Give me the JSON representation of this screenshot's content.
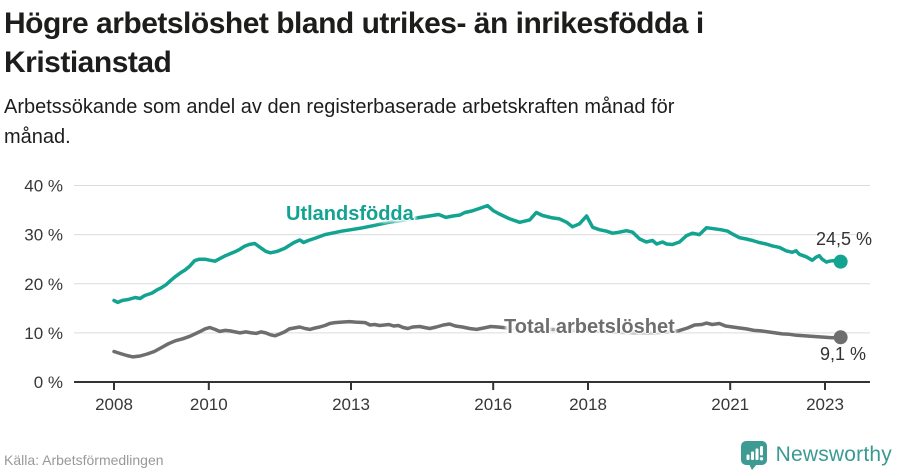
{
  "header": {
    "title_lines": [
      "Högre arbetslöshet bland utrikes- än inrikesfödda i",
      "Kristianstad"
    ],
    "subtitle_lines": [
      "Arbetssökande som andel av den registerbaserade arbetskraften månad för",
      "månad."
    ]
  },
  "footer": {
    "source": "Källa: Arbetsförmedlingen",
    "logo_text": "Newsworthy",
    "logo_icon": "newsworthy-speech-bubble-bar-chart-icon"
  },
  "colors": {
    "title": "#1d1d1b",
    "series_utland": "#12a391",
    "series_total": "#6e6e6e",
    "grid": "#dcdcdc",
    "axis_line": "#333333",
    "axis_text": "#383838",
    "annotation": "#333333",
    "source_text": "#999999",
    "logo_teal": "#3d9b94"
  },
  "chart_data": {
    "type": "line",
    "title": "Högre arbetslöshet bland utrikes- än inrikesfödda i Kristianstad",
    "subtitle": "Arbetssökande som andel av den registerbaserade arbetskraften månad för månad.",
    "xlabel": "",
    "ylabel": "",
    "xlim": [
      2007.9,
      2023.6
    ],
    "ylim": [
      0,
      40
    ],
    "grid": "horizontal",
    "legend_position": "inline-labels",
    "x_ticks": [
      {
        "year": 2008,
        "label": "2008"
      },
      {
        "year": 2010,
        "label": "2010"
      },
      {
        "year": 2013,
        "label": "2013"
      },
      {
        "year": 2016,
        "label": "2016"
      },
      {
        "year": 2018,
        "label": "2018"
      },
      {
        "year": 2021,
        "label": "2021"
      },
      {
        "year": 2023,
        "label": "2023"
      }
    ],
    "y_ticks": [
      {
        "value": 0,
        "label": "0 %"
      },
      {
        "value": 10,
        "label": "10 %"
      },
      {
        "value": 20,
        "label": "20 %"
      },
      {
        "value": 30,
        "label": "30 %"
      },
      {
        "value": 40,
        "label": "40 %"
      }
    ],
    "series": [
      {
        "name": "Utlandsfödda",
        "color": "#12a391",
        "end_label": "24,5 %",
        "end_value": 24.5,
        "points": [
          [
            2008.0,
            16.6
          ],
          [
            2008.08,
            16.2
          ],
          [
            2008.17,
            16.6
          ],
          [
            2008.3,
            16.8
          ],
          [
            2008.45,
            17.2
          ],
          [
            2008.55,
            17.0
          ],
          [
            2008.65,
            17.6
          ],
          [
            2008.8,
            18.1
          ],
          [
            2008.9,
            18.7
          ],
          [
            2009.0,
            19.2
          ],
          [
            2009.1,
            19.8
          ],
          [
            2009.2,
            20.7
          ],
          [
            2009.3,
            21.5
          ],
          [
            2009.4,
            22.2
          ],
          [
            2009.5,
            22.8
          ],
          [
            2009.6,
            23.6
          ],
          [
            2009.7,
            24.7
          ],
          [
            2009.8,
            25.0
          ],
          [
            2009.92,
            25.0
          ],
          [
            2010.02,
            24.8
          ],
          [
            2010.13,
            24.6
          ],
          [
            2010.25,
            25.2
          ],
          [
            2010.35,
            25.7
          ],
          [
            2010.45,
            26.1
          ],
          [
            2010.55,
            26.5
          ],
          [
            2010.65,
            27.0
          ],
          [
            2010.75,
            27.6
          ],
          [
            2010.85,
            28.0
          ],
          [
            2010.97,
            28.2
          ],
          [
            2011.1,
            27.3
          ],
          [
            2011.2,
            26.6
          ],
          [
            2011.3,
            26.3
          ],
          [
            2011.45,
            26.6
          ],
          [
            2011.6,
            27.2
          ],
          [
            2011.7,
            27.8
          ],
          [
            2011.8,
            28.4
          ],
          [
            2011.92,
            28.9
          ],
          [
            2012.0,
            28.4
          ],
          [
            2012.1,
            28.8
          ],
          [
            2012.25,
            29.3
          ],
          [
            2012.45,
            30.0
          ],
          [
            2012.65,
            30.4
          ],
          [
            2012.8,
            30.7
          ],
          [
            2013.0,
            31.0
          ],
          [
            2013.2,
            31.3
          ],
          [
            2013.4,
            31.7
          ],
          [
            2013.6,
            32.1
          ],
          [
            2013.8,
            32.5
          ],
          [
            2014.0,
            32.8
          ],
          [
            2014.2,
            33.1
          ],
          [
            2014.4,
            33.4
          ],
          [
            2014.6,
            33.7
          ],
          [
            2014.85,
            34.1
          ],
          [
            2015.0,
            33.5
          ],
          [
            2015.15,
            33.8
          ],
          [
            2015.3,
            34.0
          ],
          [
            2015.4,
            34.5
          ],
          [
            2015.55,
            34.8
          ],
          [
            2015.7,
            35.3
          ],
          [
            2015.88,
            35.9
          ],
          [
            2016.0,
            34.9
          ],
          [
            2016.13,
            34.2
          ],
          [
            2016.35,
            33.2
          ],
          [
            2016.56,
            32.5
          ],
          [
            2016.77,
            33.0
          ],
          [
            2016.91,
            34.5
          ],
          [
            2017.04,
            33.9
          ],
          [
            2017.25,
            33.4
          ],
          [
            2017.4,
            33.2
          ],
          [
            2017.55,
            32.5
          ],
          [
            2017.67,
            31.6
          ],
          [
            2017.82,
            32.2
          ],
          [
            2017.97,
            33.8
          ],
          [
            2018.1,
            31.5
          ],
          [
            2018.24,
            31.0
          ],
          [
            2018.39,
            30.7
          ],
          [
            2018.52,
            30.3
          ],
          [
            2018.66,
            30.5
          ],
          [
            2018.81,
            30.8
          ],
          [
            2018.94,
            30.5
          ],
          [
            2019.09,
            29.1
          ],
          [
            2019.23,
            28.5
          ],
          [
            2019.36,
            28.8
          ],
          [
            2019.45,
            28.1
          ],
          [
            2019.57,
            28.5
          ],
          [
            2019.66,
            28.1
          ],
          [
            2019.78,
            28.0
          ],
          [
            2019.93,
            28.5
          ],
          [
            2020.08,
            29.8
          ],
          [
            2020.2,
            30.3
          ],
          [
            2020.35,
            30.0
          ],
          [
            2020.5,
            31.4
          ],
          [
            2020.65,
            31.2
          ],
          [
            2020.8,
            31.0
          ],
          [
            2020.95,
            30.7
          ],
          [
            2021.05,
            30.1
          ],
          [
            2021.19,
            29.4
          ],
          [
            2021.34,
            29.1
          ],
          [
            2021.47,
            28.8
          ],
          [
            2021.61,
            28.4
          ],
          [
            2021.76,
            28.1
          ],
          [
            2021.89,
            27.7
          ],
          [
            2022.04,
            27.4
          ],
          [
            2022.18,
            26.7
          ],
          [
            2022.31,
            26.4
          ],
          [
            2022.39,
            26.7
          ],
          [
            2022.46,
            26.0
          ],
          [
            2022.6,
            25.5
          ],
          [
            2022.73,
            24.8
          ],
          [
            2022.81,
            25.4
          ],
          [
            2022.88,
            25.7
          ],
          [
            2022.94,
            25.0
          ],
          [
            2023.03,
            24.4
          ],
          [
            2023.09,
            24.6
          ],
          [
            2023.17,
            24.7
          ],
          [
            2023.33,
            24.5
          ]
        ]
      },
      {
        "name": "Total arbetslöshet",
        "color": "#6e6e6e",
        "end_label": "9,1 %",
        "end_value": 9.1,
        "points": [
          [
            2008.0,
            6.2
          ],
          [
            2008.13,
            5.8
          ],
          [
            2008.27,
            5.4
          ],
          [
            2008.4,
            5.1
          ],
          [
            2008.55,
            5.3
          ],
          [
            2008.7,
            5.7
          ],
          [
            2008.85,
            6.2
          ],
          [
            2009.0,
            7.0
          ],
          [
            2009.15,
            7.8
          ],
          [
            2009.3,
            8.4
          ],
          [
            2009.45,
            8.8
          ],
          [
            2009.6,
            9.3
          ],
          [
            2009.8,
            10.2
          ],
          [
            2009.92,
            10.8
          ],
          [
            2010.02,
            11.1
          ],
          [
            2010.13,
            10.7
          ],
          [
            2010.23,
            10.3
          ],
          [
            2010.35,
            10.5
          ],
          [
            2010.45,
            10.4
          ],
          [
            2010.55,
            10.2
          ],
          [
            2010.66,
            10.0
          ],
          [
            2010.78,
            10.2
          ],
          [
            2010.9,
            10.0
          ],
          [
            2011.0,
            9.9
          ],
          [
            2011.1,
            10.2
          ],
          [
            2011.2,
            10.0
          ],
          [
            2011.3,
            9.6
          ],
          [
            2011.4,
            9.4
          ],
          [
            2011.5,
            9.8
          ],
          [
            2011.6,
            10.2
          ],
          [
            2011.7,
            10.8
          ],
          [
            2011.8,
            11.0
          ],
          [
            2011.92,
            11.2
          ],
          [
            2012.03,
            10.9
          ],
          [
            2012.13,
            10.7
          ],
          [
            2012.24,
            11.0
          ],
          [
            2012.34,
            11.2
          ],
          [
            2012.45,
            11.5
          ],
          [
            2012.55,
            11.9
          ],
          [
            2012.66,
            12.1
          ],
          [
            2012.8,
            12.2
          ],
          [
            2012.97,
            12.3
          ],
          [
            2013.1,
            12.2
          ],
          [
            2013.3,
            12.1
          ],
          [
            2013.4,
            11.6
          ],
          [
            2013.5,
            11.7
          ],
          [
            2013.6,
            11.5
          ],
          [
            2013.8,
            11.7
          ],
          [
            2013.9,
            11.4
          ],
          [
            2014.0,
            11.5
          ],
          [
            2014.1,
            11.1
          ],
          [
            2014.2,
            10.9
          ],
          [
            2014.3,
            11.2
          ],
          [
            2014.45,
            11.3
          ],
          [
            2014.55,
            11.1
          ],
          [
            2014.66,
            10.9
          ],
          [
            2014.8,
            11.2
          ],
          [
            2014.95,
            11.6
          ],
          [
            2015.08,
            11.8
          ],
          [
            2015.2,
            11.4
          ],
          [
            2015.35,
            11.2
          ],
          [
            2015.5,
            10.9
          ],
          [
            2015.65,
            10.7
          ],
          [
            2015.8,
            11.0
          ],
          [
            2015.95,
            11.3
          ],
          [
            2016.1,
            11.2
          ],
          [
            2016.3,
            11.0
          ],
          [
            2016.6,
            10.9
          ],
          [
            2016.9,
            10.8
          ],
          [
            2017.2,
            10.7
          ],
          [
            2017.5,
            10.6
          ],
          [
            2017.8,
            10.5
          ],
          [
            2018.1,
            10.4
          ],
          [
            2018.4,
            10.2
          ],
          [
            2018.7,
            10.1
          ],
          [
            2019.0,
            10.0
          ],
          [
            2019.3,
            10.0
          ],
          [
            2019.6,
            10.1
          ],
          [
            2019.9,
            10.4
          ],
          [
            2020.1,
            11.0
          ],
          [
            2020.25,
            11.6
          ],
          [
            2020.4,
            11.7
          ],
          [
            2020.5,
            12.0
          ],
          [
            2020.62,
            11.7
          ],
          [
            2020.77,
            11.9
          ],
          [
            2020.9,
            11.4
          ],
          [
            2021.05,
            11.2
          ],
          [
            2021.2,
            11.0
          ],
          [
            2021.34,
            10.8
          ],
          [
            2021.5,
            10.5
          ],
          [
            2021.65,
            10.4
          ],
          [
            2021.8,
            10.2
          ],
          [
            2021.95,
            10.0
          ],
          [
            2022.1,
            9.8
          ],
          [
            2022.25,
            9.7
          ],
          [
            2022.4,
            9.5
          ],
          [
            2022.55,
            9.4
          ],
          [
            2022.7,
            9.3
          ],
          [
            2022.85,
            9.2
          ],
          [
            2023.0,
            9.1
          ],
          [
            2023.15,
            9.0
          ],
          [
            2023.33,
            9.1
          ]
        ]
      }
    ]
  }
}
